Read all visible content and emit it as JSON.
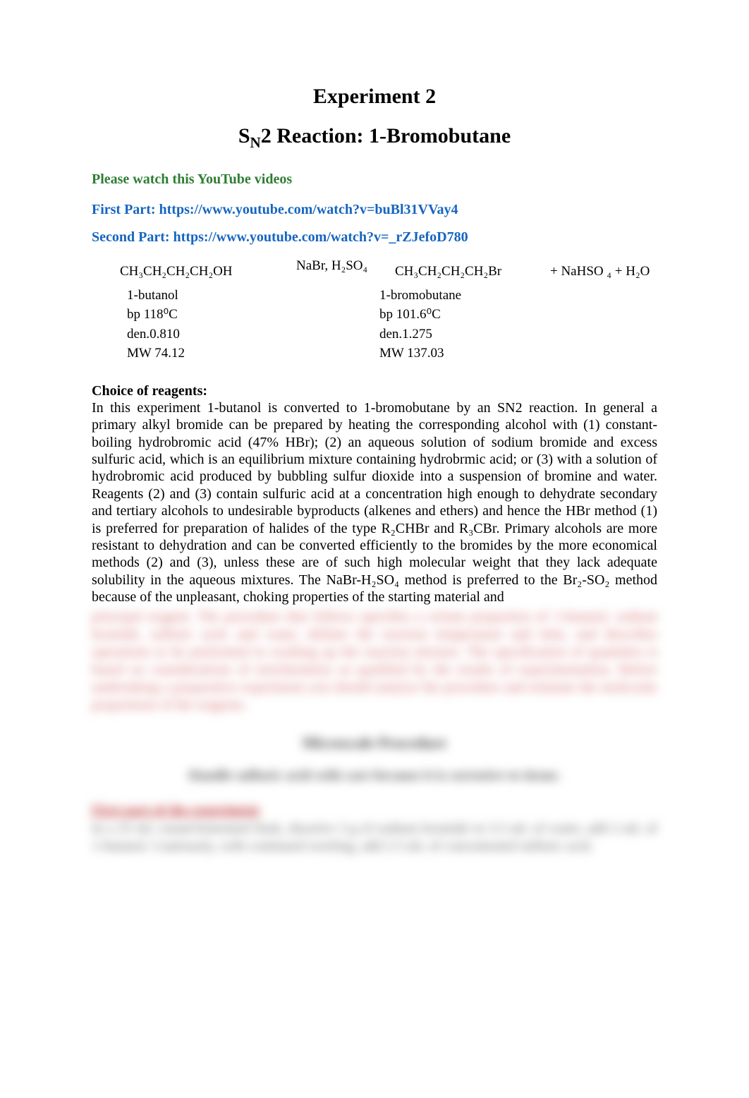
{
  "colors": {
    "background": "#ffffff",
    "text": "#000000",
    "green": "#2e7d32",
    "blue": "#1565c0",
    "blur_red": "#d46a6a",
    "blur_gray": "#555555"
  },
  "typography": {
    "family": "Times New Roman",
    "title_size_pt": 22,
    "link_size_pt": 15,
    "body_size_pt": 15
  },
  "title_line1": "Experiment 2",
  "title_line2_prefix": "S",
  "title_line2_sub": "N",
  "title_line2_rest": "2 Reaction: 1-Bromobutane",
  "links": {
    "watch_label": "Please watch this YouTube videos",
    "first_label": "First Part: ",
    "first_url": "https://www.youtube.com/watch?v=buBl31VVay4",
    "second_label": "Second Part: ",
    "second_url": "https://www.youtube.com/watch?v=_rZJefoD780"
  },
  "reaction": {
    "reactant_formula": "CH₃CH₂CH₂CH₂OH",
    "reagent_over_arrow": "NaBr, H₂SO₄",
    "product_formula": "CH₃CH₂CH₂CH₂Br",
    "byproducts": "+ NaHSO ₄ + H₂O",
    "left_name": "1-butanol",
    "left_bp": "bp 118⁰C",
    "left_den": "den.0.810",
    "left_mw": "MW 74.12",
    "right_name": "1-bromobutane",
    "right_bp": "bp 101.6⁰C",
    "right_den": "den.1.275",
    "right_mw": "MW 137.03"
  },
  "section_heading": "Choice of reagents:",
  "paragraph": "In this experiment 1-butanol is converted to 1-bromobutane by an SN2 reaction. In general a primary alkyl bromide can be prepared by heating the corresponding alcohol with (1) constant-boiling hydrobromic acid (47% HBr); (2) an aqueous solution of sodium bromide and excess sulfuric acid, which is an equilibrium mixture containing hydrobrmic acid; or (3) with a solution of hydrobromic acid produced by bubbling sulfur dioxide into a suspension of bromine and water. Reagents (2) and (3) contain sulfuric acid at a concentration high enough to dehydrate secondary and tertiary alcohols to undesirable byproducts (alkenes and ethers) and hence the HBr method (1) is preferred for preparation of halides of the type R₂CHBr and R₃CBr. Primary alcohols are more resistant to dehydration and can be converted efficiently to the bromides by the more economical methods (2) and (3), unless these are of such high molecular weight that they lack adequate solubility in the aqueous mixtures. The NaBr-H₂SO₄ method is preferred to the Br₂-SO₂ method because of the unpleasant, choking properties of the starting material and",
  "blurred": {
    "para": "principal reagent. The procedure that follows specifies a certain proportion of 1-butanol, sodium bromide, sulfuric acid, and water, defines the reaction temperature and time, and describes operations to be performed in working up the reaction mixture. The specification of quantities is based on considerations of stoichiometry as qualified by the results of experimentation. Before undertaking a preparative experiment you should analyze the procedure and estimate the molecular proportions of the reagents.",
    "heading": "Microscale Procedure",
    "subhead": "Handle sulfuric acid with care because it is corrosive to tissue.",
    "partlabel": "First part of the experiment",
    "body2": "In a 25 mL round-bottomed flask, dissolve 3 g of sodium bromide in 3.5 mL of water, add 2 mL of 1-butanol. Cautiously, with continued swirling, add 2.5 mL of concentrated sulfuric acid."
  }
}
